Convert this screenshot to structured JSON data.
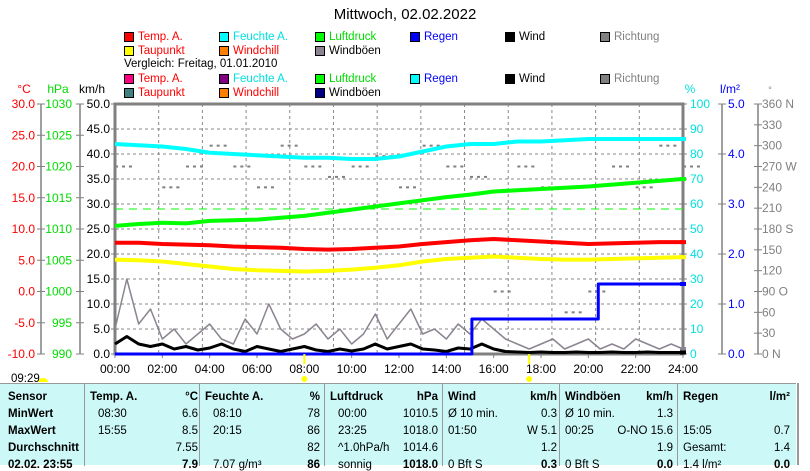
{
  "title": "Mittwoch, 02.02.2022",
  "legend_current": [
    {
      "label": "Temp. A.",
      "color": "#ff0000",
      "text_color": "#ff0000"
    },
    {
      "label": "Feuchte A.",
      "color": "#00ffff",
      "text_color": "#00e0e0"
    },
    {
      "label": "Luftdruck",
      "color": "#00ff00",
      "text_color": "#00dd00"
    },
    {
      "label": "Regen",
      "color": "#0000ff",
      "text_color": "#0000ff"
    },
    {
      "label": "Wind",
      "color": "#000000",
      "text_color": "#000000"
    },
    {
      "label": "Richtung",
      "color": "#808080",
      "text_color": "#808080"
    },
    {
      "label": "Taupunkt",
      "color": "#ffff00",
      "text_color": "#ff0000"
    },
    {
      "label": "Windchill",
      "color": "#ff8000",
      "text_color": "#ff0000"
    },
    {
      "label": "Windböen",
      "color": "#8c8490",
      "text_color": "#000000"
    }
  ],
  "comparison_label": "Vergleich: Freitag, 01.01.2010",
  "legend_compare": [
    {
      "label": "Temp. A.",
      "color": "#ff0080",
      "text_color": "#ff0000"
    },
    {
      "label": "Feuchte A.",
      "color": "#800080",
      "text_color": "#00e0e0"
    },
    {
      "label": "Luftdruck",
      "color": "#00ff00",
      "text_color": "#00dd00"
    },
    {
      "label": "Regen",
      "color": "#00ffff",
      "text_color": "#0000ff"
    },
    {
      "label": "Wind",
      "color": "#000000",
      "text_color": "#000000"
    },
    {
      "label": "Richtung",
      "color": "#808080",
      "text_color": "#808080"
    },
    {
      "label": "Taupunkt",
      "color": "#408080",
      "text_color": "#ff0000"
    },
    {
      "label": "Windchill",
      "color": "#ff8000",
      "text_color": "#ff0000"
    },
    {
      "label": "Windböen",
      "color": "#000080",
      "text_color": "#000000"
    }
  ],
  "clock": "09:29",
  "chart_data": {
    "type": "line",
    "title": "Mittwoch, 02.02.2022",
    "x_ticks": [
      "00:00",
      "02:00",
      "04:00",
      "06:00",
      "08:00",
      "10:00",
      "12:00",
      "14:00",
      "16:00",
      "18:00",
      "20:00",
      "22:00",
      "24:00"
    ],
    "xlim": [
      0,
      24
    ],
    "axes": {
      "temp": {
        "unit": "°C",
        "range": [
          -10,
          30
        ],
        "ticks": [
          "-10.0",
          "-5.0",
          "0.0",
          "5.0",
          "10.0",
          "15.0",
          "20.0",
          "25.0",
          "30.0"
        ],
        "color": "#ff0000"
      },
      "pressure": {
        "unit": "hPa",
        "range": [
          990,
          1030
        ],
        "ticks": [
          "990",
          "995",
          "1000",
          "1005",
          "1010",
          "1015",
          "1020",
          "1025",
          "1030"
        ],
        "color": "#00dd00"
      },
      "wind": {
        "unit": "km/h",
        "range": [
          0,
          50
        ],
        "ticks": [
          "0.0",
          "5.0",
          "10.0",
          "15.0",
          "20.0",
          "25.0",
          "30.0",
          "35.0",
          "40.0",
          "45.0",
          "50.0"
        ],
        "color": "#000000"
      },
      "humidity": {
        "unit": "%",
        "range": [
          0,
          100
        ],
        "ticks": [
          "0",
          "10",
          "20",
          "30",
          "40",
          "50",
          "60",
          "70",
          "80",
          "90",
          "100"
        ],
        "color": "#00e0e0"
      },
      "rain": {
        "unit": "l/m²",
        "range": [
          0,
          5
        ],
        "ticks": [
          "0.0",
          "1.0",
          "2.0",
          "3.0",
          "4.0",
          "5.0"
        ],
        "color": "#0000ff"
      },
      "direction": {
        "unit": "°",
        "range": [
          0,
          360
        ],
        "ticks": [
          "0  N",
          "30",
          "60",
          "90  O",
          "120",
          "150",
          "180 S",
          "210",
          "240",
          "270 W",
          "300",
          "330",
          "360 N"
        ],
        "color": "#808080"
      }
    },
    "series": [
      {
        "name": "Feuchte A.",
        "axis": "humidity",
        "color": "#00ffff",
        "x_step_h": 1,
        "values": [
          84,
          83.5,
          83,
          82,
          80.5,
          80,
          79.5,
          79,
          78.5,
          78.5,
          78,
          78,
          79,
          81,
          83,
          84,
          84,
          85,
          85,
          85.5,
          86,
          86,
          86,
          86,
          86
        ]
      },
      {
        "name": "Luftdruck",
        "axis": "pressure",
        "color": "#00ff00",
        "x_step_h": 1,
        "values": [
          1010.5,
          1010.8,
          1011,
          1010.9,
          1011.3,
          1011.4,
          1011.5,
          1011.8,
          1012.1,
          1012.6,
          1013.1,
          1013.6,
          1014.1,
          1014.6,
          1015.1,
          1015.5,
          1016,
          1016.2,
          1016.4,
          1016.6,
          1016.8,
          1017.1,
          1017.4,
          1017.7,
          1018.0
        ]
      },
      {
        "name": "Temp. A.",
        "axis": "temp",
        "color": "#ff0000",
        "x_step_h": 1,
        "values": [
          7.8,
          7.8,
          7.6,
          7.5,
          7.4,
          7.2,
          7.1,
          7.0,
          6.8,
          6.7,
          6.8,
          7.0,
          7.2,
          7.6,
          7.9,
          8.2,
          8.4,
          8.2,
          8.0,
          7.8,
          7.6,
          7.7,
          7.8,
          7.9,
          7.9
        ]
      },
      {
        "name": "Taupunkt",
        "axis": "temp",
        "color": "#ffff00",
        "x_step_h": 1,
        "values": [
          5.1,
          5.0,
          4.8,
          4.4,
          4.0,
          3.6,
          3.4,
          3.3,
          3.2,
          3.3,
          3.5,
          3.8,
          4.2,
          4.8,
          5.2,
          5.4,
          5.6,
          5.4,
          5.2,
          5.1,
          5.1,
          5.2,
          5.3,
          5.4,
          5.5
        ]
      },
      {
        "name": "Windböen",
        "axis": "wind",
        "color": "#8c8490",
        "x_step_h": 0.5,
        "values": [
          5,
          15,
          6,
          9,
          3,
          5,
          2,
          4,
          6,
          3,
          2,
          7,
          4,
          10,
          5,
          3,
          4,
          6,
          3,
          5,
          2,
          4,
          8,
          3,
          6,
          9,
          4,
          5,
          3,
          6,
          4,
          7,
          5,
          3,
          2,
          1,
          2,
          3,
          1,
          2,
          3,
          1,
          2,
          1,
          3,
          2,
          1,
          2,
          1
        ]
      },
      {
        "name": "Wind",
        "axis": "wind",
        "color": "#000000",
        "x_step_h": 0.5,
        "values": [
          2,
          3.5,
          2,
          1.5,
          2,
          1,
          1.5,
          0.8,
          1.2,
          2,
          1,
          0.5,
          1.5,
          1,
          0.5,
          1,
          1.5,
          0.8,
          0.5,
          1,
          0.6,
          1,
          2,
          1,
          1.5,
          2,
          1,
          0.8,
          0.5,
          1.2,
          1,
          2,
          1,
          0.5,
          0.4,
          0.3,
          0.4,
          0.3,
          0.3,
          0.4,
          0.3,
          0.3,
          0.4,
          0.3,
          0.3,
          0.4,
          0.3,
          0.3,
          0.3
        ]
      },
      {
        "name": "Regen",
        "axis": "rain",
        "color": "#0000ff",
        "points": [
          [
            0,
            0
          ],
          [
            15.08,
            0
          ],
          [
            15.08,
            0.7
          ],
          [
            20.42,
            0.7
          ],
          [
            20.42,
            1.4
          ],
          [
            24,
            1.4
          ]
        ]
      }
    ],
    "comparison_series": [
      {
        "name": "Luftdruck 01.01.2010",
        "axis": "pressure",
        "color": "#00ff00",
        "constant": 1013.2
      }
    ],
    "direction_samples": {
      "axis": "direction",
      "color": "#808080",
      "x_step_h": 1,
      "values": [
        270,
        300,
        240,
        270,
        300,
        270,
        240,
        300,
        270,
        255,
        270,
        285,
        240,
        300,
        270,
        255,
        90,
        270,
        240,
        60,
        90,
        270,
        240,
        300,
        270
      ]
    }
  },
  "table": {
    "headers": [
      {
        "name": "Sensor",
        "unit": ""
      },
      {
        "name": "Temp. A.",
        "unit": "°C"
      },
      {
        "name": "Feuchte A.",
        "unit": "%"
      },
      {
        "name": "Luftdruck",
        "unit": "hPa"
      },
      {
        "name": "Wind",
        "unit": "km/h"
      },
      {
        "name": "Windböen",
        "unit": "km/h"
      },
      {
        "name": "Regen",
        "unit": "l/m²"
      }
    ],
    "rows": [
      {
        "label": "MinWert",
        "cells": [
          [
            "08:30",
            "6.6"
          ],
          [
            "08:10",
            "78"
          ],
          [
            "00:00",
            "1010.5"
          ],
          [
            "Ø 10 min.",
            "0.3"
          ],
          [
            "Ø 10 min.",
            "1.3"
          ],
          [
            "",
            ""
          ]
        ]
      },
      {
        "label": "MaxWert",
        "cells": [
          [
            "15:55",
            "8.5"
          ],
          [
            "20:15",
            "86"
          ],
          [
            "23:25",
            "1018.0"
          ],
          [
            "01:50",
            "W 5.1"
          ],
          [
            "00:25",
            "O-NO 15.6"
          ],
          [
            "15:05",
            "0.7"
          ]
        ]
      },
      {
        "label": "Durchschnitt",
        "cells": [
          [
            "",
            "7.55"
          ],
          [
            "",
            "82"
          ],
          [
            "^1.0hPa/h",
            "1014.6"
          ],
          [
            "",
            "1.2"
          ],
          [
            "",
            "1.9"
          ],
          [
            "Gesamt:",
            "1.4"
          ]
        ]
      },
      {
        "label": "02.02. 23:55",
        "cells": [
          [
            "",
            "7.9"
          ],
          [
            "7.07 g/m³",
            "86"
          ],
          [
            "sonnig",
            "1018.0"
          ],
          [
            "0 Bft S",
            "0.3"
          ],
          [
            "0 Bft S",
            "0.0"
          ],
          [
            "1.4 l/m²",
            "0.0"
          ]
        ]
      }
    ]
  }
}
